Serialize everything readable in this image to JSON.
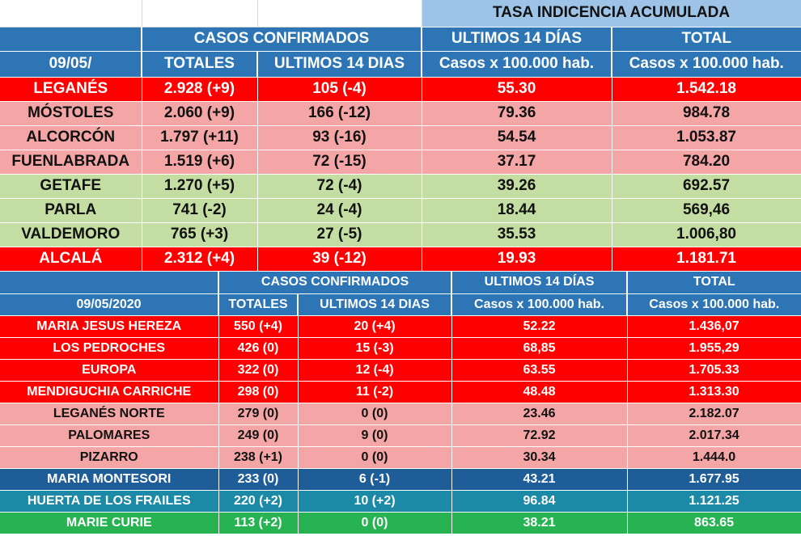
{
  "table1": {
    "title": "TASA INDICENCIA  ACUMULADA",
    "group_casos": "CASOS  CONFIRMADOS",
    "group_ultimos": "ULTIMOS 14 DÍAS",
    "group_total": "TOTAL",
    "col_date": "09/05/",
    "col_totales": "TOTALES",
    "col_ult14": "ULTIMOS 14 DIAS",
    "col_rate14": "Casos x 100.000 hab.",
    "col_rate_total": "Casos x 100.000 hab.",
    "rows": [
      {
        "name": "LEGANÉS",
        "totales": "2.928 (+9)",
        "ult14": "105 (-4)",
        "rate14": "55.30",
        "total": "1.542.18",
        "color": "#ff0000"
      },
      {
        "name": "MÓSTOLES",
        "totales": "2.060 (+9)",
        "ult14": "166 (-12)",
        "rate14": "79.36",
        "total": "984.78",
        "color": "#f4a6a6"
      },
      {
        "name": "ALCORCÓN",
        "totales": "1.797 (+11)",
        "ult14": "93 (-16)",
        "rate14": "54.54",
        "total": "1.053.87",
        "color": "#f4a6a6"
      },
      {
        "name": "FUENLABRADA",
        "totales": "1.519 (+6)",
        "ult14": "72 (-15)",
        "rate14": "37.17",
        "total": "784.20",
        "color": "#f4a6a6"
      },
      {
        "name": "GETAFE",
        "totales": "1.270 (+5)",
        "ult14": "72 (-4)",
        "rate14": "39.26",
        "total": "692.57",
        "color": "#c4dda2"
      },
      {
        "name": "PARLA",
        "totales": "741 (-2)",
        "ult14": "24 (-4)",
        "rate14": "18.44",
        "total": "569,46",
        "color": "#c4dda2"
      },
      {
        "name": "VALDEMORO",
        "totales": "765 (+3)",
        "ult14": "27 (-5)",
        "rate14": "35.53",
        "total": "1.006,80",
        "color": "#c4dda2"
      },
      {
        "name": "ALCALÁ",
        "totales": "2.312 (+4)",
        "ult14": "39 (-12)",
        "rate14": "19.93",
        "total": "1.181.71",
        "color": "#ff0000"
      }
    ]
  },
  "table2": {
    "group_casos": "CASOS  CONFIRMADOS",
    "group_ultimos": "ULTIMOS 14 DÍAS",
    "group_total": "TOTAL",
    "col_date": "09/05/2020",
    "col_totales": "TOTALES",
    "col_ult14": "ULTIMOS 14 DIAS",
    "col_rate14": "Casos x 100.000 hab.",
    "col_rate_total": "Casos x 100.000 hab.",
    "rows": [
      {
        "name": "MARIA JESUS HEREZA",
        "totales": "550 (+4)",
        "ult14": "20 (+4)",
        "rate14": "52.22",
        "total": "1.436,07",
        "color": "#ff0000"
      },
      {
        "name": "LOS PEDROCHES",
        "totales": "426 (0)",
        "ult14": "15 (-3)",
        "rate14": "68,85",
        "total": "1.955,29",
        "color": "#ff0000"
      },
      {
        "name": "EUROPA",
        "totales": "322 (0)",
        "ult14": "12 (-4)",
        "rate14": "63.55",
        "total": "1.705.33",
        "color": "#ff0000"
      },
      {
        "name": "MENDIGUCHIA CARRICHE",
        "totales": "298 (0)",
        "ult14": "11 (-2)",
        "rate14": "48.48",
        "total": "1.313.30",
        "color": "#ff0000"
      },
      {
        "name": "LEGANÉS NORTE",
        "totales": "279 (0)",
        "ult14": "0 (0)",
        "rate14": "23.46",
        "total": "2.182.07",
        "color": "#f4a6a6"
      },
      {
        "name": "PALOMARES",
        "totales": "249 (0)",
        "ult14": "9 (0)",
        "rate14": "72.92",
        "total": "2.017.34",
        "color": "#f4a6a6"
      },
      {
        "name": "PIZARRO",
        "totales": "238 (+1)",
        "ult14": "0 (0)",
        "rate14": "30.34",
        "total": "1.444.0",
        "color": "#f4a6a6"
      },
      {
        "name": "MARIA MONTESORI",
        "totales": "233 (0)",
        "ult14": "6 (-1)",
        "rate14": "43.21",
        "total": "1.677.95",
        "color": "#1f5d99"
      },
      {
        "name": "HUERTA DE LOS FRAILES",
        "totales": "220 (+2)",
        "ult14": "10 (+2)",
        "rate14": "96.84",
        "total": "1.121.25",
        "color": "#1c8aa6"
      },
      {
        "name": "MARIE CURIE",
        "totales": "113 (+2)",
        "ult14": "0 (0)",
        "rate14": "38.21",
        "total": "863.65",
        "color": "#27b351"
      }
    ]
  }
}
